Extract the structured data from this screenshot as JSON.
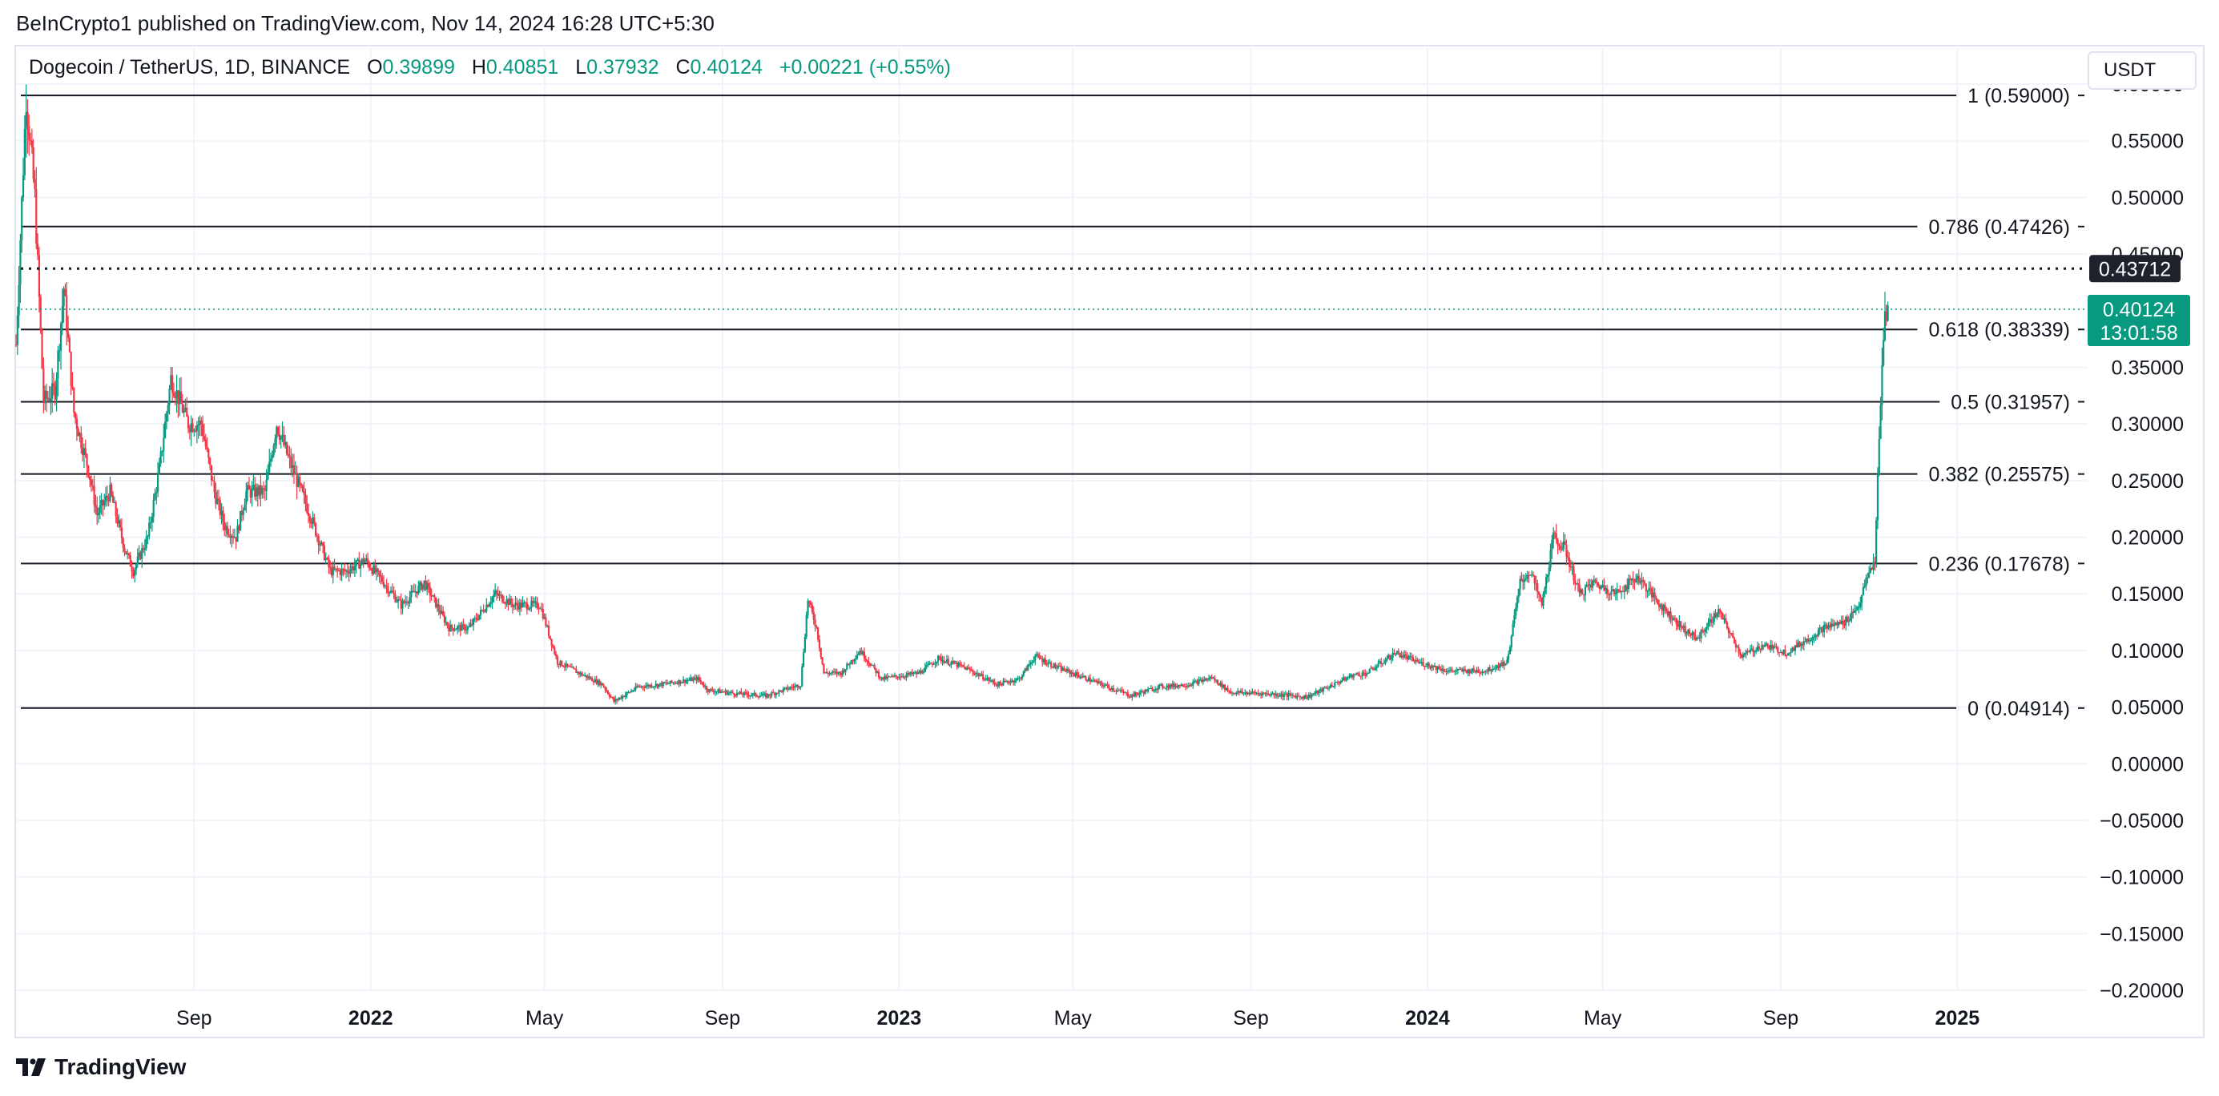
{
  "publisher_line": "BeInCrypto1 published on TradingView.com, Nov 14, 2024 16:28 UTC+5:30",
  "legend": {
    "symbol": "Dogecoin / TetherUS, 1D, BINANCE",
    "open_label": "O",
    "open": "0.39899",
    "high_label": "H",
    "high": "0.40851",
    "low_label": "L",
    "low": "0.37932",
    "close_label": "C",
    "close": "0.40124",
    "change": "+0.00221 (+0.55%)"
  },
  "currency_button": "USDT",
  "brand": "TradingView",
  "colors": {
    "up": "#089981",
    "down": "#f23645",
    "fib_line": "#131722",
    "grid": "#f0f3fa"
  },
  "chart_data": {
    "type": "candlestick",
    "ylim": [
      -0.2,
      0.6
    ],
    "y_ticks": [
      "0.60000",
      "0.55000",
      "0.50000",
      "0.45000",
      "0.35000",
      "0.30000",
      "0.25000",
      "0.20000",
      "0.15000",
      "0.10000",
      "0.05000",
      "0.00000",
      "−0.05000",
      "−0.10000",
      "−0.15000",
      "−0.20000"
    ],
    "y_tick_values": [
      0.6,
      0.55,
      0.5,
      0.45,
      0.35,
      0.3,
      0.25,
      0.2,
      0.15,
      0.1,
      0.05,
      0.0,
      -0.05,
      -0.1,
      -0.15,
      -0.2
    ],
    "x_ticks": [
      {
        "label": "Sep",
        "date": "2021-09-01",
        "bold": false
      },
      {
        "label": "2022",
        "date": "2022-01-01",
        "bold": true
      },
      {
        "label": "May",
        "date": "2022-05-01",
        "bold": false
      },
      {
        "label": "Sep",
        "date": "2022-09-01",
        "bold": false
      },
      {
        "label": "2023",
        "date": "2023-01-01",
        "bold": true
      },
      {
        "label": "May",
        "date": "2023-05-01",
        "bold": false
      },
      {
        "label": "Sep",
        "date": "2023-09-01",
        "bold": false
      },
      {
        "label": "2024",
        "date": "2024-01-01",
        "bold": true
      },
      {
        "label": "May",
        "date": "2024-05-01",
        "bold": false
      },
      {
        "label": "Sep",
        "date": "2024-09-01",
        "bold": false
      },
      {
        "label": "2025",
        "date": "2025-01-01",
        "bold": true
      }
    ],
    "x_range": [
      "2021-05-01",
      "2025-04-01"
    ],
    "fibonacci_levels": [
      {
        "label": "1 (0.59000)",
        "value": 0.59
      },
      {
        "label": "0.786 (0.47426)",
        "value": 0.47426
      },
      {
        "label": "0.618 (0.38339)",
        "value": 0.38339
      },
      {
        "label": "0.5 (0.31957)",
        "value": 0.31957
      },
      {
        "label": "0.382 (0.25575)",
        "value": 0.25575
      },
      {
        "label": "0.236 (0.17678)",
        "value": 0.17678
      },
      {
        "label": "0 (0.04914)",
        "value": 0.04914
      }
    ],
    "high_marker": {
      "value": 0.43712,
      "label": "0.43712"
    },
    "last_price": {
      "value": 0.40124,
      "label": "0.40124",
      "countdown": "13:01:58"
    },
    "price_path": [
      [
        "2021-05-01",
        0.37
      ],
      [
        "2021-05-08",
        0.59
      ],
      [
        "2021-05-14",
        0.5
      ],
      [
        "2021-05-20",
        0.32
      ],
      [
        "2021-05-28",
        0.33
      ],
      [
        "2021-06-03",
        0.42
      ],
      [
        "2021-06-10",
        0.31
      ],
      [
        "2021-06-20",
        0.26
      ],
      [
        "2021-06-26",
        0.22
      ],
      [
        "2021-07-05",
        0.24
      ],
      [
        "2021-07-15",
        0.19
      ],
      [
        "2021-07-21",
        0.17
      ],
      [
        "2021-07-31",
        0.2
      ],
      [
        "2021-08-08",
        0.26
      ],
      [
        "2021-08-16",
        0.34
      ],
      [
        "2021-08-28",
        0.3
      ],
      [
        "2021-09-06",
        0.3
      ],
      [
        "2021-09-15",
        0.24
      ],
      [
        "2021-09-22",
        0.21
      ],
      [
        "2021-09-30",
        0.2
      ],
      [
        "2021-10-07",
        0.24
      ],
      [
        "2021-10-20",
        0.24
      ],
      [
        "2021-10-28",
        0.3
      ],
      [
        "2021-11-05",
        0.27
      ],
      [
        "2021-11-20",
        0.22
      ],
      [
        "2021-12-04",
        0.17
      ],
      [
        "2021-12-15",
        0.17
      ],
      [
        "2021-12-28",
        0.18
      ],
      [
        "2022-01-10",
        0.16
      ],
      [
        "2022-01-22",
        0.14
      ],
      [
        "2022-02-07",
        0.16
      ],
      [
        "2022-02-24",
        0.12
      ],
      [
        "2022-03-10",
        0.12
      ],
      [
        "2022-03-28",
        0.15
      ],
      [
        "2022-04-10",
        0.14
      ],
      [
        "2022-04-28",
        0.14
      ],
      [
        "2022-05-10",
        0.09
      ],
      [
        "2022-05-25",
        0.08
      ],
      [
        "2022-06-10",
        0.07
      ],
      [
        "2022-06-18",
        0.055
      ],
      [
        "2022-07-05",
        0.068
      ],
      [
        "2022-07-20",
        0.07
      ],
      [
        "2022-08-15",
        0.075
      ],
      [
        "2022-08-22",
        0.065
      ],
      [
        "2022-09-10",
        0.062
      ],
      [
        "2022-10-01",
        0.06
      ],
      [
        "2022-10-25",
        0.07
      ],
      [
        "2022-10-30",
        0.145
      ],
      [
        "2022-11-05",
        0.12
      ],
      [
        "2022-11-10",
        0.08
      ],
      [
        "2022-11-22",
        0.08
      ],
      [
        "2022-12-05",
        0.1
      ],
      [
        "2022-12-20",
        0.075
      ],
      [
        "2023-01-15",
        0.08
      ],
      [
        "2023-01-28",
        0.093
      ],
      [
        "2023-02-15",
        0.085
      ],
      [
        "2023-03-10",
        0.07
      ],
      [
        "2023-03-25",
        0.075
      ],
      [
        "2023-04-05",
        0.095
      ],
      [
        "2023-04-20",
        0.085
      ],
      [
        "2023-05-15",
        0.073
      ],
      [
        "2023-06-10",
        0.06
      ],
      [
        "2023-06-30",
        0.068
      ],
      [
        "2023-07-20",
        0.07
      ],
      [
        "2023-08-05",
        0.076
      ],
      [
        "2023-08-18",
        0.063
      ],
      [
        "2023-09-10",
        0.062
      ],
      [
        "2023-10-10",
        0.059
      ],
      [
        "2023-10-25",
        0.068
      ],
      [
        "2023-11-10",
        0.078
      ],
      [
        "2023-11-20",
        0.08
      ],
      [
        "2023-12-10",
        0.098
      ],
      [
        "2023-12-25",
        0.09
      ],
      [
        "2024-01-15",
        0.082
      ],
      [
        "2024-02-10",
        0.082
      ],
      [
        "2024-02-25",
        0.09
      ],
      [
        "2024-03-05",
        0.16
      ],
      [
        "2024-03-12",
        0.17
      ],
      [
        "2024-03-20",
        0.14
      ],
      [
        "2024-03-28",
        0.2
      ],
      [
        "2024-04-05",
        0.19
      ],
      [
        "2024-04-15",
        0.15
      ],
      [
        "2024-04-25",
        0.16
      ],
      [
        "2024-05-10",
        0.15
      ],
      [
        "2024-05-25",
        0.165
      ],
      [
        "2024-06-10",
        0.14
      ],
      [
        "2024-06-25",
        0.12
      ],
      [
        "2024-07-05",
        0.11
      ],
      [
        "2024-07-20",
        0.135
      ],
      [
        "2024-08-05",
        0.095
      ],
      [
        "2024-08-20",
        0.105
      ],
      [
        "2024-09-05",
        0.098
      ],
      [
        "2024-09-20",
        0.11
      ],
      [
        "2024-10-01",
        0.12
      ],
      [
        "2024-10-15",
        0.125
      ],
      [
        "2024-10-25",
        0.14
      ],
      [
        "2024-10-31",
        0.165
      ],
      [
        "2024-11-05",
        0.18
      ],
      [
        "2024-11-07",
        0.25
      ],
      [
        "2024-11-10",
        0.35
      ],
      [
        "2024-11-12",
        0.4
      ],
      [
        "2024-11-14",
        0.401
      ]
    ]
  }
}
